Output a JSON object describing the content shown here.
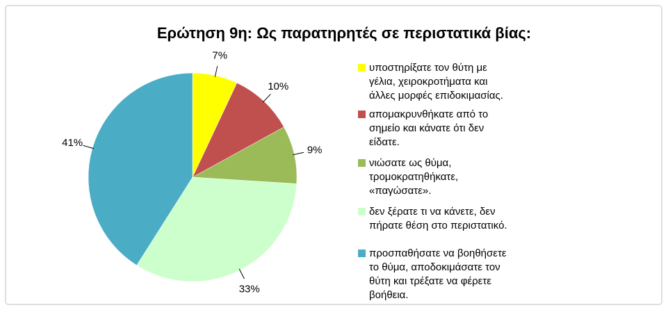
{
  "chart_data": {
    "type": "pie",
    "title": "Ερώτηση 9η: Ως παρατηρητές σε περιστατικά βίας:",
    "series": [
      {
        "name": "υποστηρίξατε τον θύτη με γέλια, χειροκροτήματα και άλλες μορφές επιδοκιμασίας.",
        "color": "#ffff00",
        "values": [
          7
        ],
        "value_labels": [
          "7%"
        ]
      },
      {
        "name": "απομακρυνθήκατε από το σημείο και κάνατε ότι δεν είδατε.",
        "color": "#c0504d",
        "values": [
          10
        ],
        "value_labels": [
          "10%"
        ]
      },
      {
        "name": "νιώσατε ως θύμα, τρομοκρατηθήκατε, «παγώσατε».",
        "color": "#9bbb59",
        "values": [
          9
        ],
        "value_labels": [
          "9%"
        ]
      },
      {
        "name": "δεν ξέρατε τι να κάνετε, δεν πήρατε θέση στο περιστατικό.",
        "color": "#ccffcc",
        "values": [
          33
        ],
        "value_labels": [
          "33%"
        ]
      },
      {
        "name": "προσπαθήσατε να βοηθήσετε το θύμα, αποδοκιμάσατε τον θύτη και τρέξατε να φέρετε βοήθεια.",
        "color": "#4bacc6",
        "values": [
          41
        ],
        "value_labels": [
          "41%"
        ]
      }
    ],
    "legend": "right"
  }
}
